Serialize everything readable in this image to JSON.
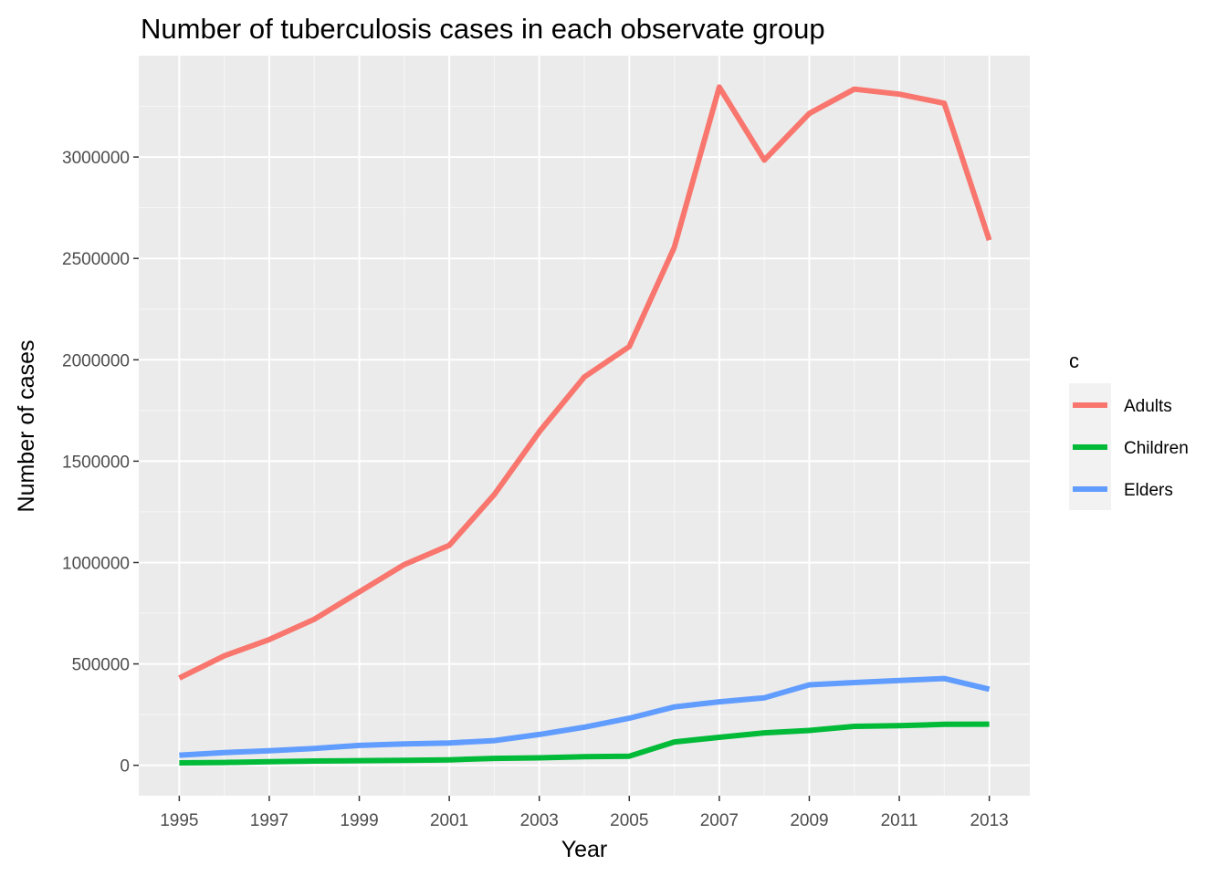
{
  "chart_data": {
    "type": "line",
    "title": "Number of tuberculosis cases in each observate group",
    "xlabel": "Year",
    "ylabel": "Number of cases",
    "x": [
      1995,
      1996,
      1997,
      1998,
      1999,
      2000,
      2001,
      2002,
      2003,
      2004,
      2005,
      2006,
      2007,
      2008,
      2009,
      2010,
      2011,
      2012,
      2013
    ],
    "xlim": [
      1994.1,
      2013.9
    ],
    "ylim": [
      -150000,
      3500000
    ],
    "x_ticks": [
      "1995",
      "1997",
      "1999",
      "2001",
      "2003",
      "2005",
      "2007",
      "2009",
      "2011",
      "2013"
    ],
    "y_ticks": [
      "0",
      "500000",
      "1000000",
      "1500000",
      "2000000",
      "2500000",
      "3000000"
    ],
    "grid": true,
    "legend": {
      "title": "c",
      "position": "right"
    },
    "series": [
      {
        "name": "Adults",
        "color": "#f8766d",
        "values": [
          430000,
          540000,
          620000,
          720000,
          855000,
          990000,
          1085000,
          1335000,
          1645000,
          1915000,
          2065000,
          2555000,
          3345000,
          2985000,
          3215000,
          3335000,
          3310000,
          3265000,
          2590000
        ]
      },
      {
        "name": "Children",
        "color": "#00ba38",
        "values": [
          12000,
          14000,
          18000,
          21000,
          23000,
          24000,
          27000,
          34000,
          37000,
          42000,
          45000,
          115000,
          138000,
          160000,
          172000,
          192000,
          195000,
          202000,
          203000
        ]
      },
      {
        "name": "Elders",
        "color": "#619cff",
        "values": [
          50000,
          63000,
          72000,
          83000,
          98000,
          105000,
          110000,
          122000,
          152000,
          188000,
          232000,
          288000,
          313000,
          333000,
          397000,
          408000,
          418000,
          428000,
          375000
        ]
      }
    ]
  }
}
